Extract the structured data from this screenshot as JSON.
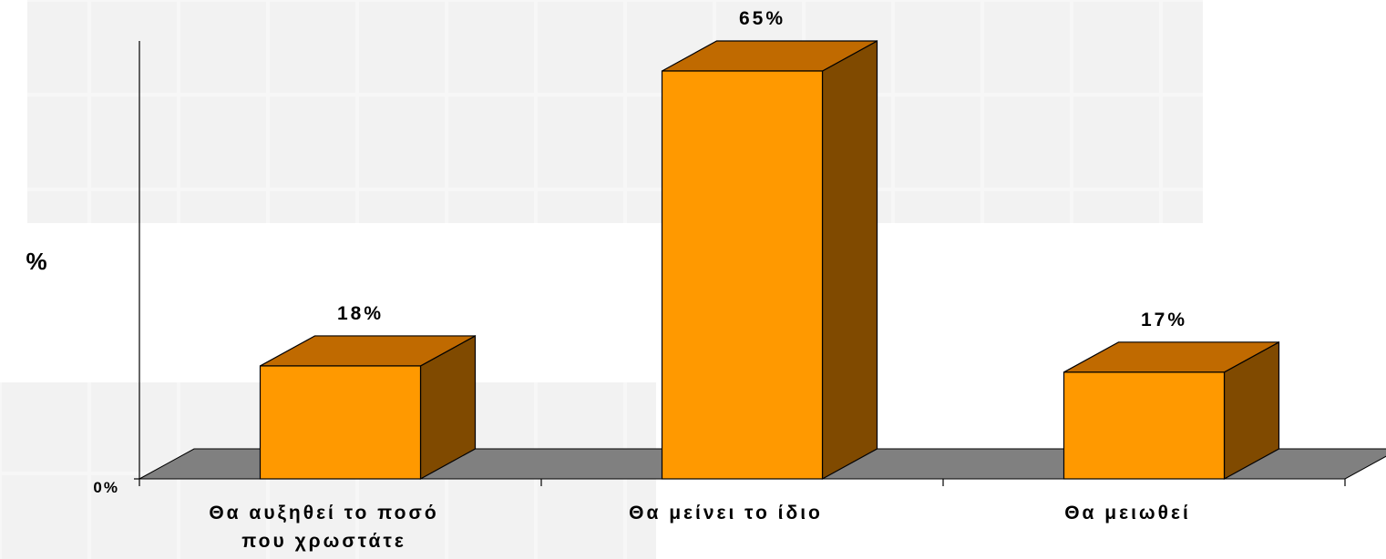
{
  "chart_data": {
    "type": "bar",
    "style": "3d",
    "categories": [
      [
        "Θα αυξηθεί το ποσό",
        "που χρωστάτε"
      ],
      [
        "Θα μείνει το ίδιο"
      ],
      [
        "Θα μειωθεί"
      ]
    ],
    "values": [
      18,
      65,
      17
    ],
    "value_labels": [
      "18%",
      "65%",
      "17%"
    ],
    "title": "",
    "xlabel": "",
    "ylabel": "%",
    "ytick_labels": [
      "0%"
    ],
    "ylim": [
      0,
      70
    ],
    "grid": false,
    "legend": "none",
    "colors": {
      "bar_front": "#FF9900",
      "bar_top": "#C06A00",
      "bar_side": "#804A00",
      "floor": "#808080",
      "axis": "#000000"
    }
  }
}
